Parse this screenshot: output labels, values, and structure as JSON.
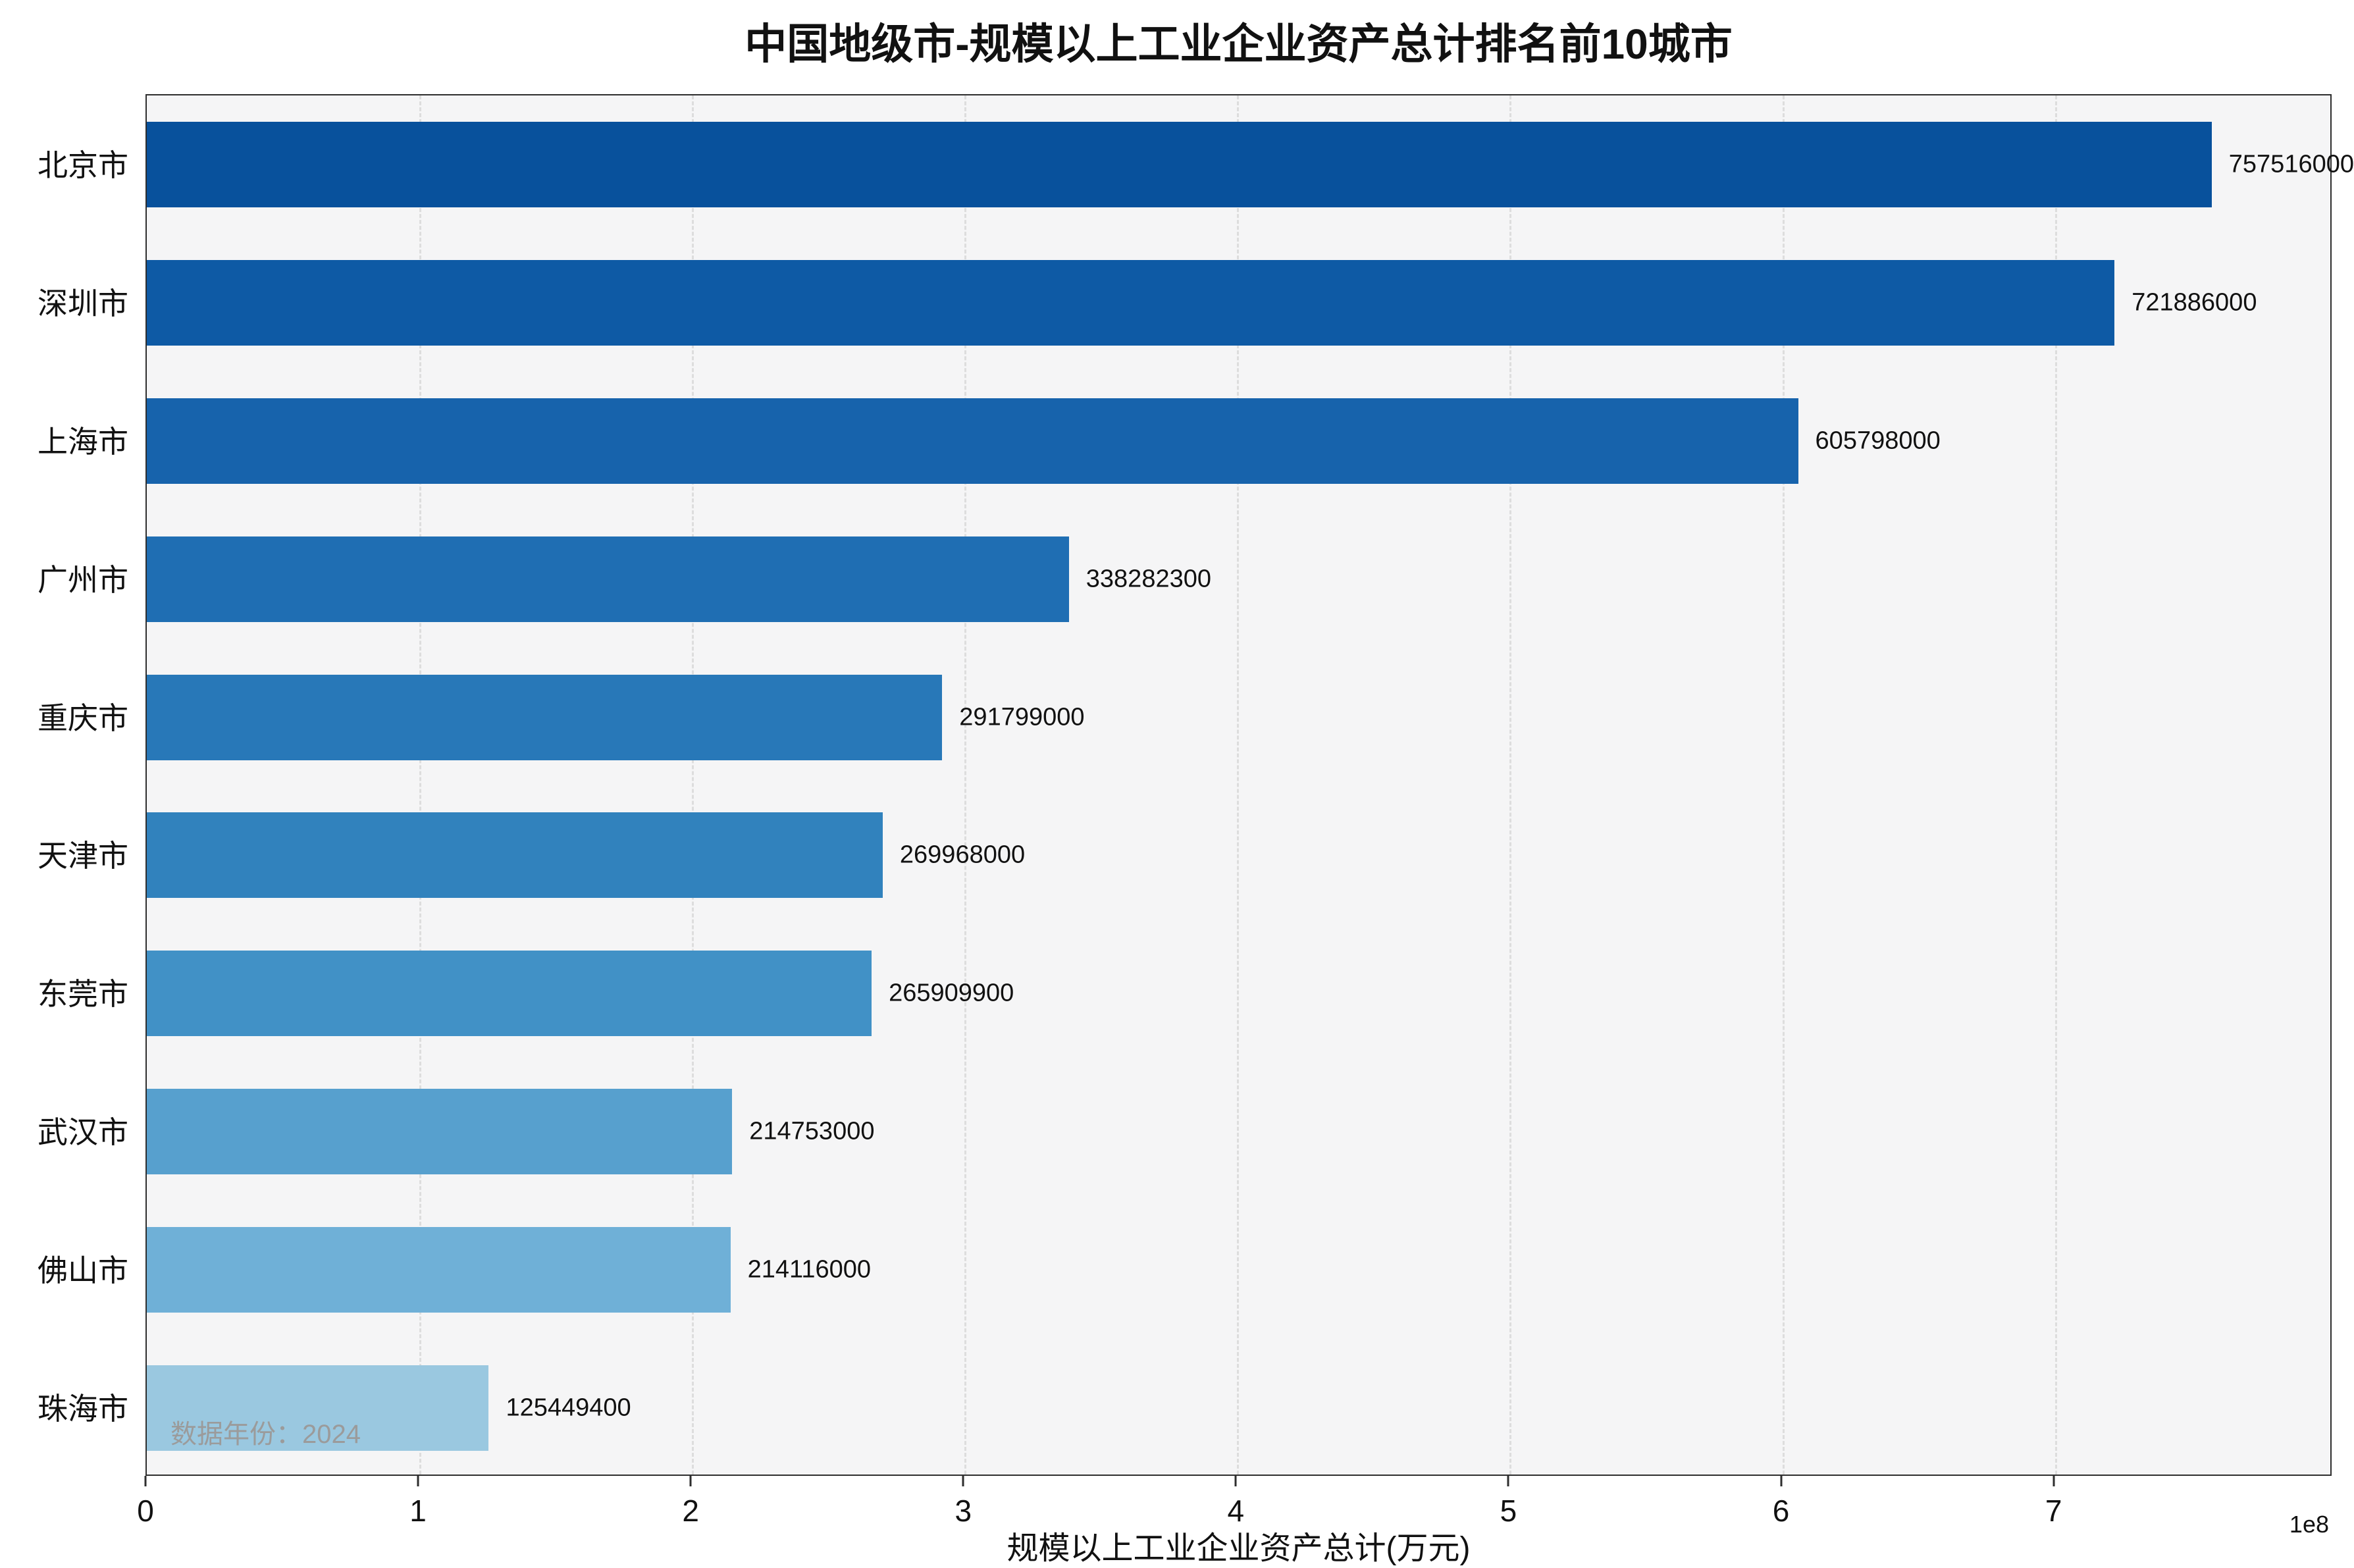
{
  "chart_data": {
    "type": "bar",
    "orientation": "horizontal",
    "title": "中国地级市-规模以上工业企业资产总计排名前10城市",
    "xlabel": "规模以上工业企业资产总计(万元)",
    "ylabel": "",
    "categories": [
      "北京市",
      "深圳市",
      "上海市",
      "广州市",
      "重庆市",
      "天津市",
      "东莞市",
      "武汉市",
      "佛山市",
      "珠海市"
    ],
    "values": [
      757516000,
      721886000,
      605798000,
      338282300,
      291799000,
      269968000,
      265909900,
      214753000,
      214116000,
      125449400
    ],
    "value_labels": [
      "757516000",
      "721886000",
      "605798000",
      "338282300",
      "291799000",
      "269968000",
      "265909900",
      "214753000",
      "214116000",
      "125449400"
    ],
    "bar_colors": [
      "#08519c",
      "#0e5aa5",
      "#1763ac",
      "#1f6eb3",
      "#2878b8",
      "#3182bd",
      "#4191c6",
      "#57a0ce",
      "#6fb0d7",
      "#9ac8e0"
    ],
    "xlim": [
      0,
      802000000
    ],
    "x_ticks": [
      0,
      1,
      2,
      3,
      4,
      5,
      6,
      7
    ],
    "tick_unit": 100000000,
    "x_tick_scale": "1e8",
    "grid": "dashed-vertical",
    "legend": "none",
    "plot_bg": "#f5f5f6",
    "annotation": "数据年份：2024"
  }
}
